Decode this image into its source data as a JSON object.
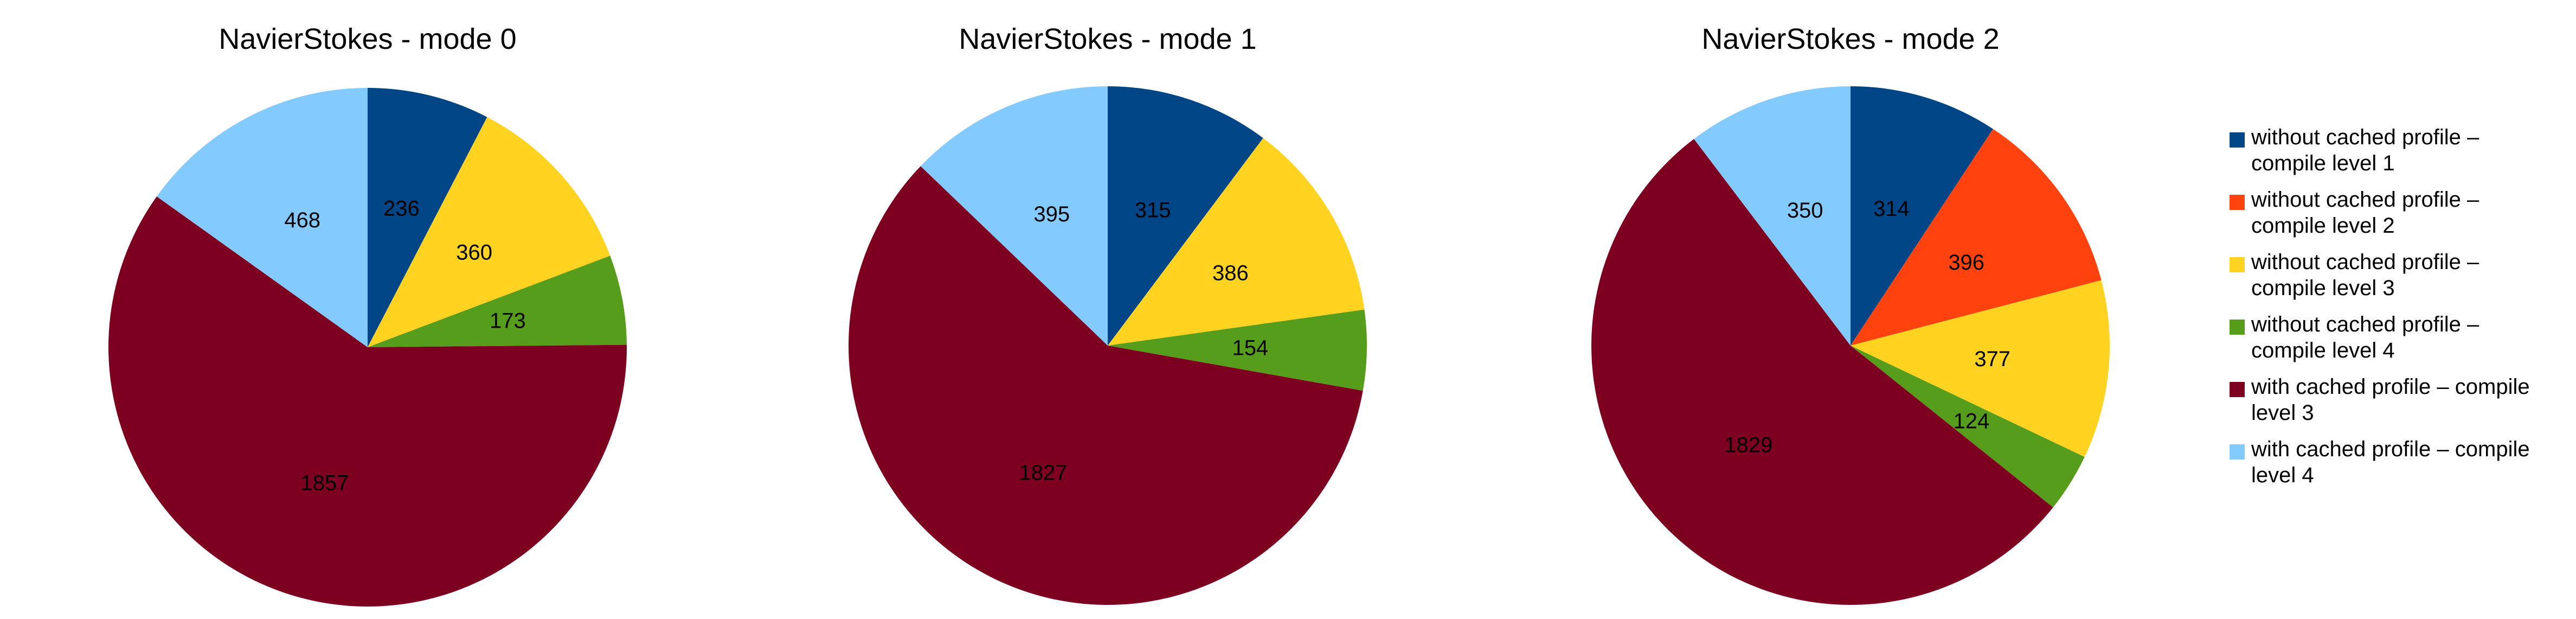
{
  "chart_data": [
    {
      "type": "pie",
      "title": "NavierStokes - mode 0",
      "series": [
        {
          "name": "without cached profile – compile level 1",
          "value": 236
        },
        {
          "name": "without cached profile – compile level 2",
          "value": 0
        },
        {
          "name": "without cached profile – compile level 3",
          "value": 360
        },
        {
          "name": "without cached profile – compile level 4",
          "value": 173
        },
        {
          "name": "with cached profile – compile level 3",
          "value": 1857
        },
        {
          "name": "with cached profile – compile level 4",
          "value": 468
        }
      ]
    },
    {
      "type": "pie",
      "title": "NavierStokes - mode 1",
      "series": [
        {
          "name": "without cached profile – compile level 1",
          "value": 315
        },
        {
          "name": "without cached profile – compile level 2",
          "value": 0
        },
        {
          "name": "without cached profile – compile level 3",
          "value": 386
        },
        {
          "name": "without cached profile – compile level 4",
          "value": 154
        },
        {
          "name": "with cached profile – compile level 3",
          "value": 1827
        },
        {
          "name": "with cached profile – compile level 4",
          "value": 395
        }
      ]
    },
    {
      "type": "pie",
      "title": "NavierStokes - mode 2",
      "series": [
        {
          "name": "without cached profile – compile level 1",
          "value": 314
        },
        {
          "name": "without cached profile – compile level 2",
          "value": 396
        },
        {
          "name": "without cached profile – compile level 3",
          "value": 377
        },
        {
          "name": "without cached profile – compile level 4",
          "value": 124
        },
        {
          "name": "with cached profile – compile level 3",
          "value": 1829
        },
        {
          "name": "with cached profile – compile level 4",
          "value": 350
        }
      ]
    }
  ],
  "legend": {
    "position": "right",
    "entries": [
      {
        "lines": [
          "without cached profile –",
          "compile level 1"
        ],
        "color": "#004586"
      },
      {
        "lines": [
          "without cached profile –",
          "compile level 2"
        ],
        "color": "#ff420e"
      },
      {
        "lines": [
          "without cached profile –",
          "compile level 3"
        ],
        "color": "#ffd320"
      },
      {
        "lines": [
          "without cached profile –",
          "compile level 4"
        ],
        "color": "#579d1c"
      },
      {
        "lines": [
          "with cached profile – compile",
          "level 3"
        ],
        "color": "#7e0021"
      },
      {
        "lines": [
          "with cached profile – compile",
          "level 4"
        ],
        "color": "#83caff"
      }
    ]
  }
}
